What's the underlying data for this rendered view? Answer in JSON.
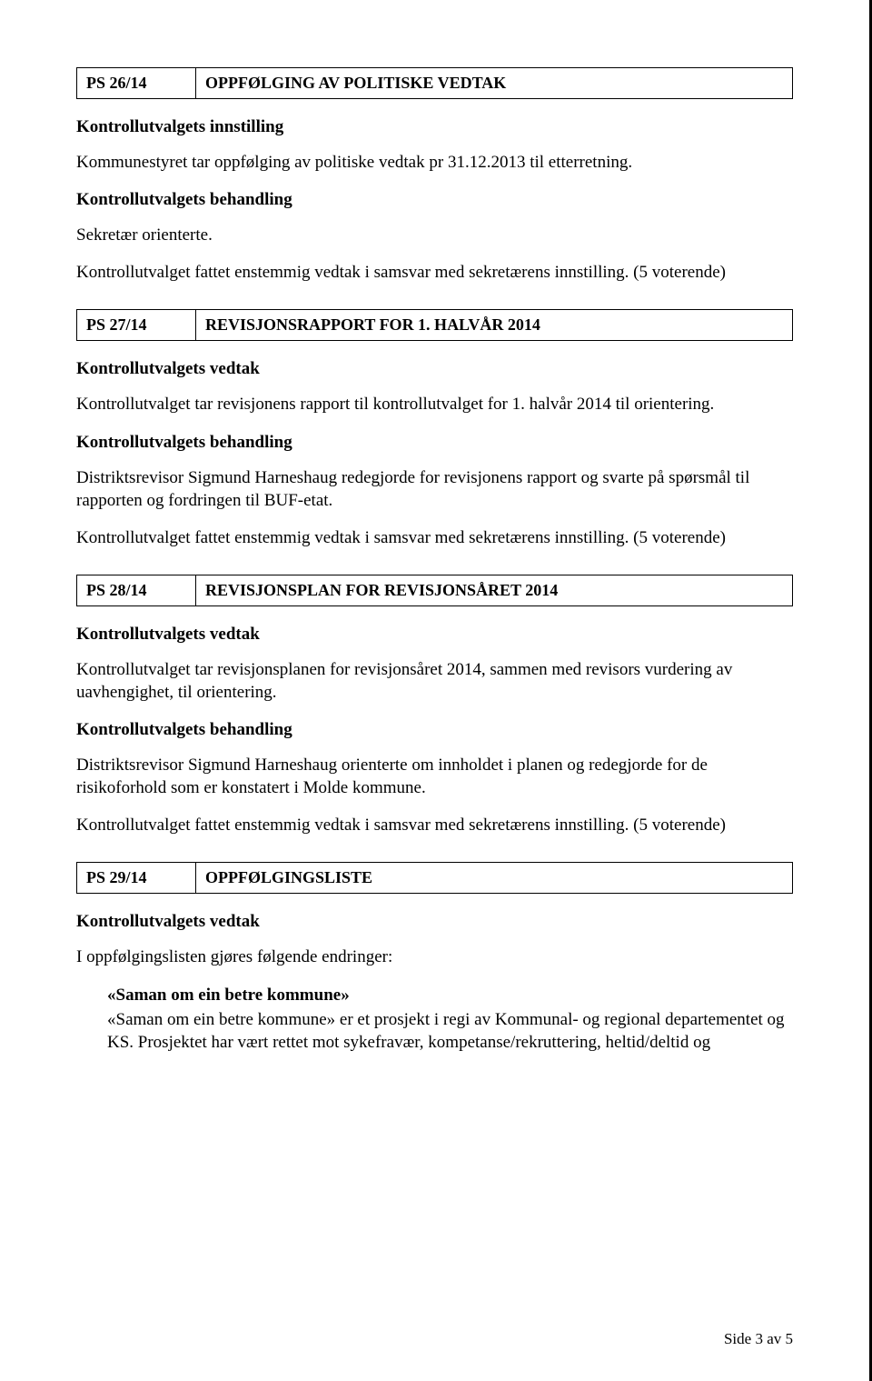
{
  "sections": [
    {
      "code": "PS 26/14",
      "title": "OPPFØLGING AV POLITISKE VEDTAK",
      "blocks": [
        {
          "type": "bold",
          "text": "Kontrollutvalgets innstilling"
        },
        {
          "type": "p",
          "text": "Kommunestyret tar oppfølging av politiske vedtak pr 31.12.2013 til etterretning."
        },
        {
          "type": "bold",
          "text": "Kontrollutvalgets behandling"
        },
        {
          "type": "p",
          "text": "Sekretær orienterte."
        },
        {
          "type": "p",
          "text": "Kontrollutvalget fattet enstemmig vedtak i samsvar med sekretærens innstilling. (5 voterende)"
        }
      ]
    },
    {
      "code": "PS 27/14",
      "title": "REVISJONSRAPPORT FOR 1. HALVÅR 2014",
      "blocks": [
        {
          "type": "bold",
          "text": "Kontrollutvalgets vedtak"
        },
        {
          "type": "p",
          "text": "Kontrollutvalget tar revisjonens rapport til kontrollutvalget for 1. halvår 2014 til orientering."
        },
        {
          "type": "bold",
          "text": "Kontrollutvalgets behandling"
        },
        {
          "type": "p",
          "text": "Distriktsrevisor Sigmund Harneshaug redegjorde for revisjonens rapport og svarte på spørsmål til rapporten og fordringen til BUF-etat."
        },
        {
          "type": "p",
          "text": "Kontrollutvalget fattet enstemmig vedtak i samsvar med sekretærens innstilling. (5 voterende)"
        }
      ]
    },
    {
      "code": "PS 28/14",
      "title": "REVISJONSPLAN FOR REVISJONSÅRET 2014",
      "blocks": [
        {
          "type": "bold",
          "text": "Kontrollutvalgets vedtak"
        },
        {
          "type": "p",
          "text": "Kontrollutvalget tar revisjonsplanen for revisjonsåret 2014, sammen med revisors vurdering av uavhengighet, til orientering."
        },
        {
          "type": "bold",
          "text": "Kontrollutvalgets behandling"
        },
        {
          "type": "p",
          "text": "Distriktsrevisor Sigmund Harneshaug orienterte om innholdet i planen og redegjorde for de risikoforhold som er konstatert i Molde kommune."
        },
        {
          "type": "p",
          "text": "Kontrollutvalget fattet enstemmig vedtak i samsvar med sekretærens innstilling. (5 voterende)"
        }
      ]
    },
    {
      "code": "PS 29/14",
      "title": "OPPFØLGINGSLISTE",
      "blocks": [
        {
          "type": "bold",
          "text": "Kontrollutvalgets vedtak"
        },
        {
          "type": "p",
          "text": "I oppfølgingslisten gjøres følgende endringer:"
        },
        {
          "type": "sub-bold",
          "text": "«Saman om ein betre kommune»"
        },
        {
          "type": "sub-p",
          "text": "«Saman om ein betre kommune» er et prosjekt i regi av Kommunal- og regional departementet og KS. Prosjektet har vært rettet mot sykefravær, kompetanse/rekruttering, heltid/deltid og"
        }
      ]
    }
  ],
  "page_number": "Side 3 av 5"
}
